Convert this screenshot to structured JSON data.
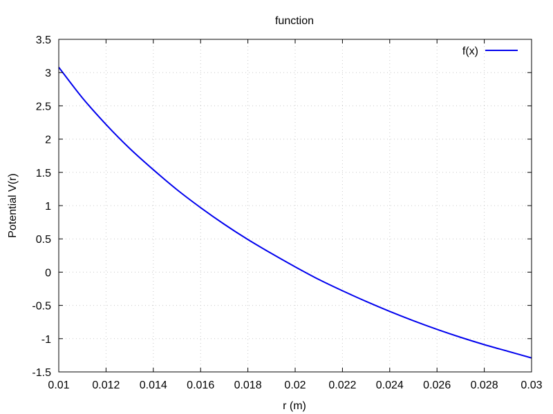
{
  "chart_data": {
    "type": "line",
    "title": "function",
    "xlabel": "r (m)",
    "ylabel": "Potential V(r)",
    "xlim": [
      0.01,
      0.03
    ],
    "ylim": [
      -1.5,
      3.5
    ],
    "x_ticks": [
      0.01,
      0.012,
      0.014,
      0.016,
      0.018,
      0.02,
      0.022,
      0.024,
      0.026,
      0.028,
      0.03
    ],
    "x_tick_labels": [
      "0.01",
      "0.012",
      "0.014",
      "0.016",
      "0.018",
      "0.02",
      "0.022",
      "0.024",
      "0.026",
      "0.028",
      "0.03"
    ],
    "y_ticks": [
      -1.5,
      -1,
      -0.5,
      0,
      0.5,
      1,
      1.5,
      2,
      2.5,
      3,
      3.5
    ],
    "y_tick_labels": [
      "-1.5",
      "-1",
      "-0.5",
      "0",
      "0.5",
      "1",
      "1.5",
      "2",
      "2.5",
      "3",
      "3.5"
    ],
    "grid": true,
    "legend_position": "top-right",
    "series": [
      {
        "name": "f(x)",
        "color": "#0000ee",
        "x": [
          0.01,
          0.011,
          0.012,
          0.013,
          0.014,
          0.015,
          0.016,
          0.017,
          0.018,
          0.019,
          0.02,
          0.021,
          0.022,
          0.023,
          0.024,
          0.025,
          0.026,
          0.027,
          0.028,
          0.029,
          0.03
        ],
        "y": [
          3.08,
          2.62,
          2.22,
          1.86,
          1.54,
          1.24,
          0.97,
          0.72,
          0.49,
          0.28,
          0.08,
          -0.11,
          -0.28,
          -0.44,
          -0.59,
          -0.73,
          -0.86,
          -0.98,
          -1.09,
          -1.19,
          -1.29
        ]
      }
    ]
  }
}
